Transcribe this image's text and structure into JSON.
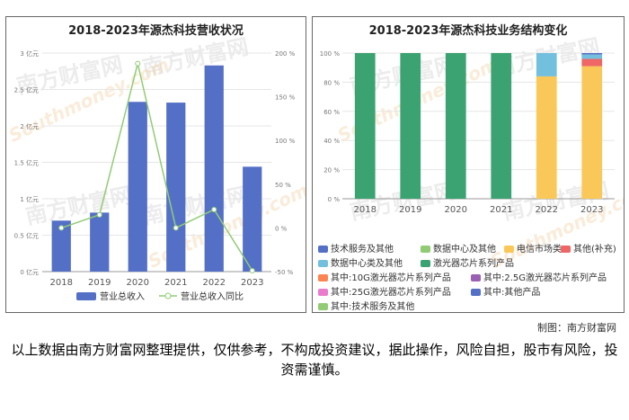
{
  "watermark": {
    "cn": "南方财富网",
    "en": "Southmoney.com"
  },
  "credit": "制图：南方财富网",
  "disclaimer": "以上数据由南方财富网整理提供，仅供参考，不构成投资建议，据此操作，风险自担，股市有风险，投资需谨慎。",
  "chart_data": [
    {
      "type": "bar",
      "title": "2018-2023年源杰科技营收状况",
      "categories": [
        "2018",
        "2019",
        "2020",
        "2021",
        "2022",
        "2023"
      ],
      "series": [
        {
          "name": "营业总收入",
          "type": "bar",
          "axis": "left",
          "color": "#5470c6",
          "values": [
            0.7,
            0.81,
            2.33,
            2.32,
            2.83,
            1.44
          ]
        },
        {
          "name": "营业总收入同比",
          "type": "line",
          "axis": "right",
          "color": "#91cc75",
          "values": [
            0,
            15,
            188,
            0,
            21,
            -49
          ]
        }
      ],
      "y_left": {
        "ylim": [
          0,
          3.0
        ],
        "ticks": [
          "0 亿元",
          "0.5 亿元",
          "1 亿元",
          "1.5 亿元",
          "2 亿元",
          "2.5 亿元",
          "3 亿元"
        ]
      },
      "y_right": {
        "ylim": [
          -50,
          200
        ],
        "ticks": [
          "-50 %",
          "0 %",
          "50 %",
          "100 %",
          "150 %",
          "200 %"
        ]
      },
      "legend_position": "bottom"
    },
    {
      "type": "bar",
      "stacked": true,
      "title": "2018-2023年源杰科技业务结构变化",
      "categories": [
        "2018",
        "2019",
        "2020",
        "2021",
        "2022",
        "2023"
      ],
      "ylim": [
        0,
        100
      ],
      "y_ticks": [
        "0 %",
        "20 %",
        "40 %",
        "60 %",
        "80 %",
        "100 %"
      ],
      "series": [
        {
          "name": "技术服务及其他",
          "color": "#5470c6",
          "values": [
            0,
            0,
            0,
            0,
            0,
            0
          ]
        },
        {
          "name": "数据中心及其他",
          "color": "#91cc75",
          "values": [
            0,
            0,
            0,
            0,
            0,
            0
          ]
        },
        {
          "name": "电信市场类",
          "color": "#fac858",
          "values": [
            0,
            0,
            0,
            0,
            84,
            91
          ]
        },
        {
          "name": "其他(补充)",
          "color": "#ee6666",
          "values": [
            0,
            0,
            0,
            0,
            0,
            5
          ]
        },
        {
          "name": "数据中心类及其他",
          "color": "#73c0de",
          "values": [
            0,
            0,
            0,
            0,
            16,
            3
          ]
        },
        {
          "name": "激光器芯片系列产品",
          "color": "#3ba272",
          "values": [
            100,
            100,
            100,
            100,
            0,
            0
          ]
        },
        {
          "name": "其中:10G激光器芯片系列产品",
          "color": "#fc8452",
          "values": [
            0,
            0,
            0,
            0,
            0,
            0
          ]
        },
        {
          "name": "其中:2.5G激光器芯片系列产品",
          "color": "#9a60b4",
          "values": [
            0,
            0,
            0,
            0,
            0,
            0
          ]
        },
        {
          "name": "其中:25G激光器芯片系列产品",
          "color": "#ea7ccc",
          "values": [
            0,
            0,
            0,
            0,
            0,
            0
          ]
        },
        {
          "name": "其中:其他产品",
          "color": "#5470c6",
          "values": [
            0,
            0,
            0,
            0,
            0,
            1
          ]
        },
        {
          "name": "其中:技术服务及其他",
          "color": "#91cc75",
          "values": [
            0,
            0,
            0,
            0,
            0,
            0
          ]
        }
      ],
      "legend_position": "bottom"
    }
  ]
}
